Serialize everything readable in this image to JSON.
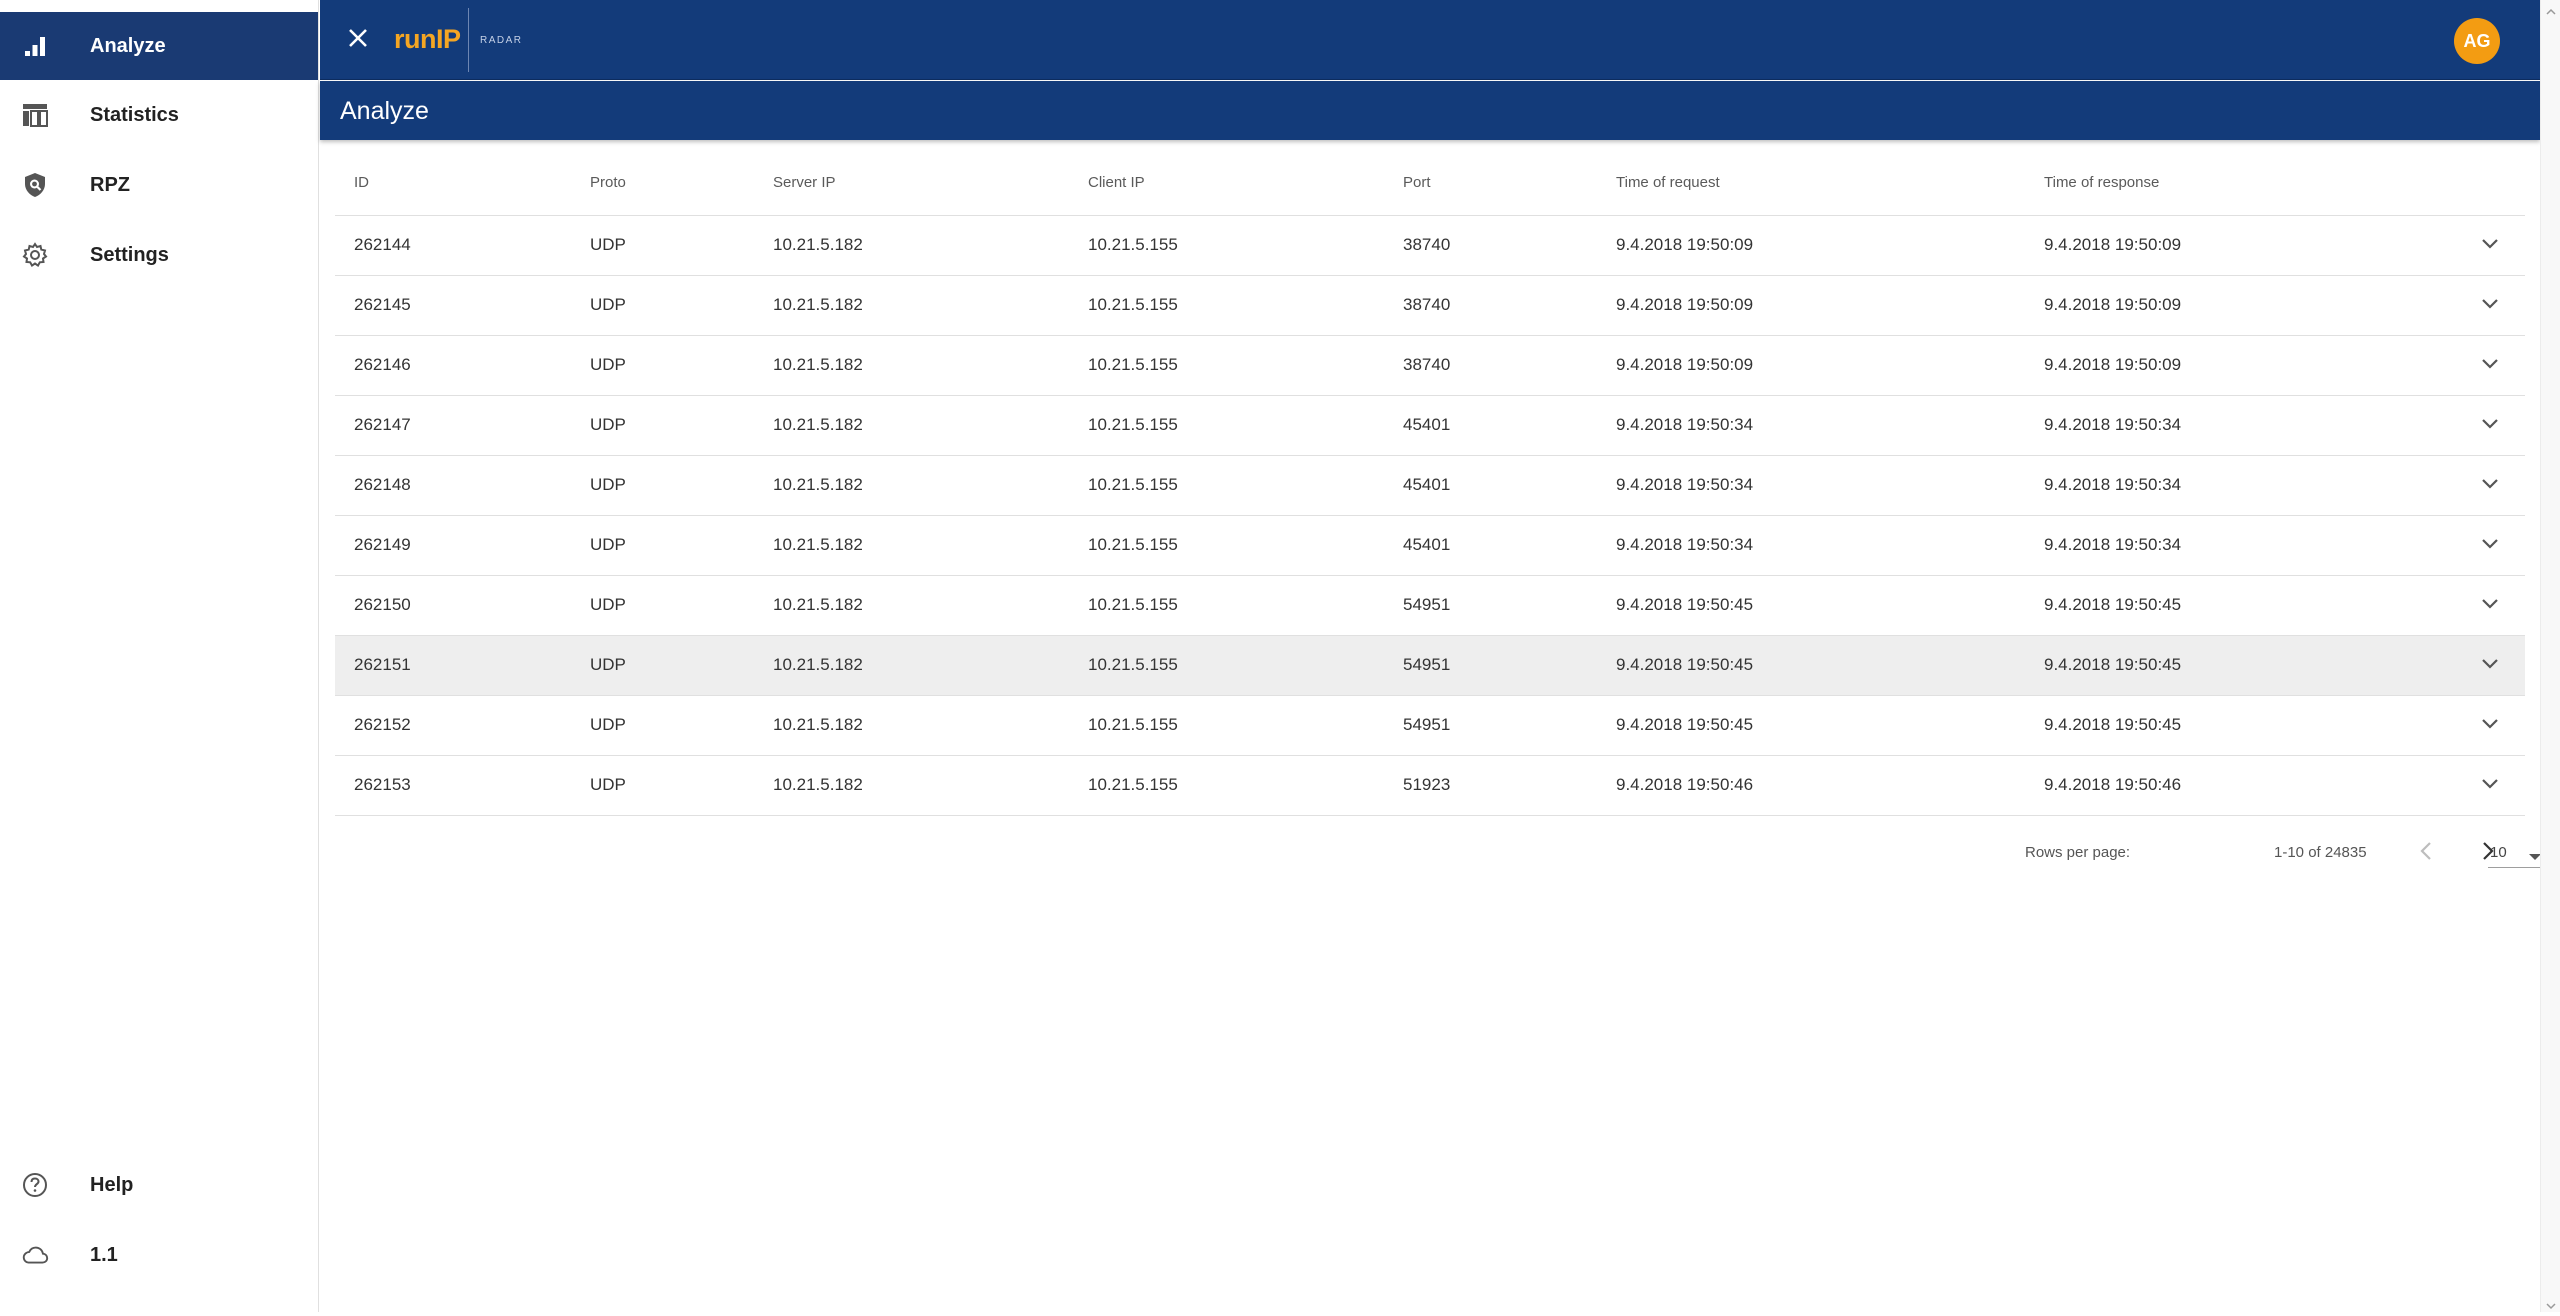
{
  "brand": {
    "part1": "run",
    "part2": "IP",
    "sub": "RADAR"
  },
  "user": {
    "initials": "AG"
  },
  "page": {
    "title": "Analyze"
  },
  "sidebar": {
    "items": [
      {
        "label": "Analyze",
        "icon": "bar-chart-icon"
      },
      {
        "label": "Statistics",
        "icon": "table-chart-icon"
      },
      {
        "label": "RPZ",
        "icon": "security-icon"
      },
      {
        "label": "Settings",
        "icon": "gear-icon"
      }
    ],
    "bottom": [
      {
        "label": "Help",
        "icon": "help-circle-icon"
      },
      {
        "label": "1.1",
        "icon": "cloud-icon"
      }
    ]
  },
  "table": {
    "headers": [
      "ID",
      "Proto",
      "Server IP",
      "Client IP",
      "Port",
      "Time of request",
      "Time of response"
    ],
    "rows": [
      [
        "262144",
        "UDP",
        "10.21.5.182",
        "10.21.5.155",
        "38740",
        "9.4.2018 19:50:09",
        "9.4.2018 19:50:09"
      ],
      [
        "262145",
        "UDP",
        "10.21.5.182",
        "10.21.5.155",
        "38740",
        "9.4.2018 19:50:09",
        "9.4.2018 19:50:09"
      ],
      [
        "262146",
        "UDP",
        "10.21.5.182",
        "10.21.5.155",
        "38740",
        "9.4.2018 19:50:09",
        "9.4.2018 19:50:09"
      ],
      [
        "262147",
        "UDP",
        "10.21.5.182",
        "10.21.5.155",
        "45401",
        "9.4.2018 19:50:34",
        "9.4.2018 19:50:34"
      ],
      [
        "262148",
        "UDP",
        "10.21.5.182",
        "10.21.5.155",
        "45401",
        "9.4.2018 19:50:34",
        "9.4.2018 19:50:34"
      ],
      [
        "262149",
        "UDP",
        "10.21.5.182",
        "10.21.5.155",
        "45401",
        "9.4.2018 19:50:34",
        "9.4.2018 19:50:34"
      ],
      [
        "262150",
        "UDP",
        "10.21.5.182",
        "10.21.5.155",
        "54951",
        "9.4.2018 19:50:45",
        "9.4.2018 19:50:45"
      ],
      [
        "262151",
        "UDP",
        "10.21.5.182",
        "10.21.5.155",
        "54951",
        "9.4.2018 19:50:45",
        "9.4.2018 19:50:45"
      ],
      [
        "262152",
        "UDP",
        "10.21.5.182",
        "10.21.5.155",
        "54951",
        "9.4.2018 19:50:45",
        "9.4.2018 19:50:45"
      ],
      [
        "262153",
        "UDP",
        "10.21.5.182",
        "10.21.5.155",
        "51923",
        "9.4.2018 19:50:46",
        "9.4.2018 19:50:46"
      ]
    ],
    "highlighted_row_index": 7
  },
  "pagination": {
    "rows_per_page_label": "Rows per page:",
    "rows_per_page": "10",
    "range": "1-10 of 24835"
  },
  "colors": {
    "header_bg": "#133b7a",
    "active_nav_bg": "#1a3a73",
    "accent": "#f5a623",
    "avatar_bg": "#f39c12"
  }
}
